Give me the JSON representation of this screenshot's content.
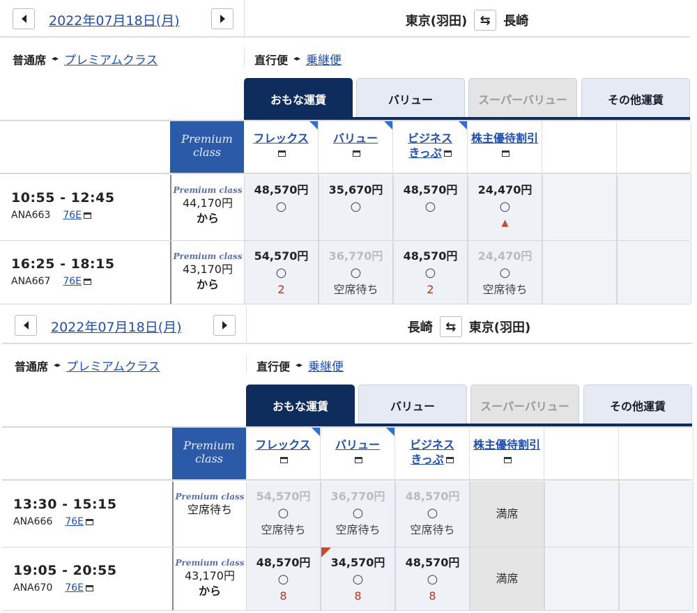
{
  "colors": {
    "navy": "#0f2d5c",
    "premium_blue": "#2b5aa8",
    "link": "#1d4fb8",
    "alert_red": "#b03a1f"
  },
  "sections": [
    {
      "date": "2022年07月18日(月)",
      "prev_icon": "chevron-left-icon",
      "next_icon": "chevron-right-icon",
      "origin": "東京(羽田)",
      "dest": "長崎",
      "swap_icon": "⇆",
      "seat_normal": "普通席",
      "seat_premium": "プレミアムクラス",
      "toggle_icon": "◂▸",
      "direct": "直行便",
      "connecting": "乗継便",
      "tabs": [
        {
          "label": "おもな運賃",
          "state": "active"
        },
        {
          "label": "バリュー",
          "state": "normal"
        },
        {
          "label": "スーパーバリュー",
          "state": "disabled"
        },
        {
          "label": "その他運賃",
          "state": "normal"
        }
      ],
      "premium_header": [
        "Premium",
        "class"
      ],
      "fare_headers": [
        {
          "lines": [
            "フレックス"
          ],
          "corner": true
        },
        {
          "lines": [
            "バリュー"
          ],
          "corner": true
        },
        {
          "lines": [
            "ビジネス",
            "きっぷ"
          ],
          "corner": true
        },
        {
          "lines": [
            "株主優待割引"
          ],
          "corner": false
        }
      ],
      "flights": [
        {
          "time": "10:55 - 12:45",
          "number": "ANA663",
          "aircraft": "76E",
          "premium": {
            "logo": "Premium class",
            "price": "44,170円",
            "suffix": "から"
          },
          "fares": [
            {
              "price": "48,570円",
              "mark": "○",
              "note": "",
              "state": "ok"
            },
            {
              "price": "35,670円",
              "mark": "○",
              "note": "",
              "state": "ok"
            },
            {
              "price": "48,570円",
              "mark": "○",
              "note": "",
              "state": "ok"
            },
            {
              "price": "24,470円",
              "mark": "○",
              "note": "▲",
              "state": "ok"
            }
          ]
        },
        {
          "time": "16:25 - 18:15",
          "number": "ANA667",
          "aircraft": "76E",
          "premium": {
            "logo": "Premium class",
            "price": "43,170円",
            "suffix": "から"
          },
          "fares": [
            {
              "price": "54,570円",
              "mark": "○",
              "note": "2",
              "state": "ok"
            },
            {
              "price": "36,770円",
              "mark": "○",
              "note": "空席待ち",
              "state": "gray"
            },
            {
              "price": "48,570円",
              "mark": "○",
              "note": "2",
              "state": "ok"
            },
            {
              "price": "24,470円",
              "mark": "○",
              "note": "空席待ち",
              "state": "gray"
            }
          ]
        }
      ]
    },
    {
      "date": "2022年07月18日(月)",
      "prev_icon": "chevron-left-icon",
      "next_icon": "chevron-right-icon",
      "origin": "長崎",
      "dest": "東京(羽田)",
      "swap_icon": "⇆",
      "seat_normal": "普通席",
      "seat_premium": "プレミアムクラス",
      "toggle_icon": "◂▸",
      "direct": "直行便",
      "connecting": "乗継便",
      "tabs": [
        {
          "label": "おもな運賃",
          "state": "active"
        },
        {
          "label": "バリュー",
          "state": "normal"
        },
        {
          "label": "スーパーバリュー",
          "state": "disabled"
        },
        {
          "label": "その他運賃",
          "state": "normal"
        }
      ],
      "premium_header": [
        "Premium",
        "class"
      ],
      "fare_headers": [
        {
          "lines": [
            "フレックス"
          ],
          "corner": true
        },
        {
          "lines": [
            "バリュー"
          ],
          "corner": true
        },
        {
          "lines": [
            "ビジネス",
            "きっぷ"
          ],
          "corner": false
        },
        {
          "lines": [
            "株主優待割引"
          ],
          "corner": false
        }
      ],
      "flights": [
        {
          "time": "13:30 - 15:15",
          "number": "ANA666",
          "aircraft": "76E",
          "premium": {
            "logo": "Premium class",
            "price": "空席待ち",
            "suffix": ""
          },
          "fares": [
            {
              "price": "54,570円",
              "mark": "○",
              "note": "空席待ち",
              "state": "gray"
            },
            {
              "price": "36,770円",
              "mark": "○",
              "note": "空席待ち",
              "state": "gray"
            },
            {
              "price": "48,570円",
              "mark": "○",
              "note": "空席待ち",
              "state": "gray"
            },
            {
              "price": "満席",
              "mark": "",
              "note": "",
              "state": "full"
            }
          ]
        },
        {
          "time": "19:05 - 20:55",
          "number": "ANA670",
          "aircraft": "76E",
          "premium": {
            "logo": "Premium class",
            "price": "43,170円",
            "suffix": "から"
          },
          "fares": [
            {
              "price": "48,570円",
              "mark": "○",
              "note": "8",
              "state": "ok"
            },
            {
              "price": "34,570円",
              "mark": "○",
              "note": "8",
              "state": "ok",
              "discount_corner": true
            },
            {
              "price": "48,570円",
              "mark": "○",
              "note": "8",
              "state": "ok"
            },
            {
              "price": "満席",
              "mark": "",
              "note": "",
              "state": "full"
            }
          ]
        }
      ]
    }
  ]
}
